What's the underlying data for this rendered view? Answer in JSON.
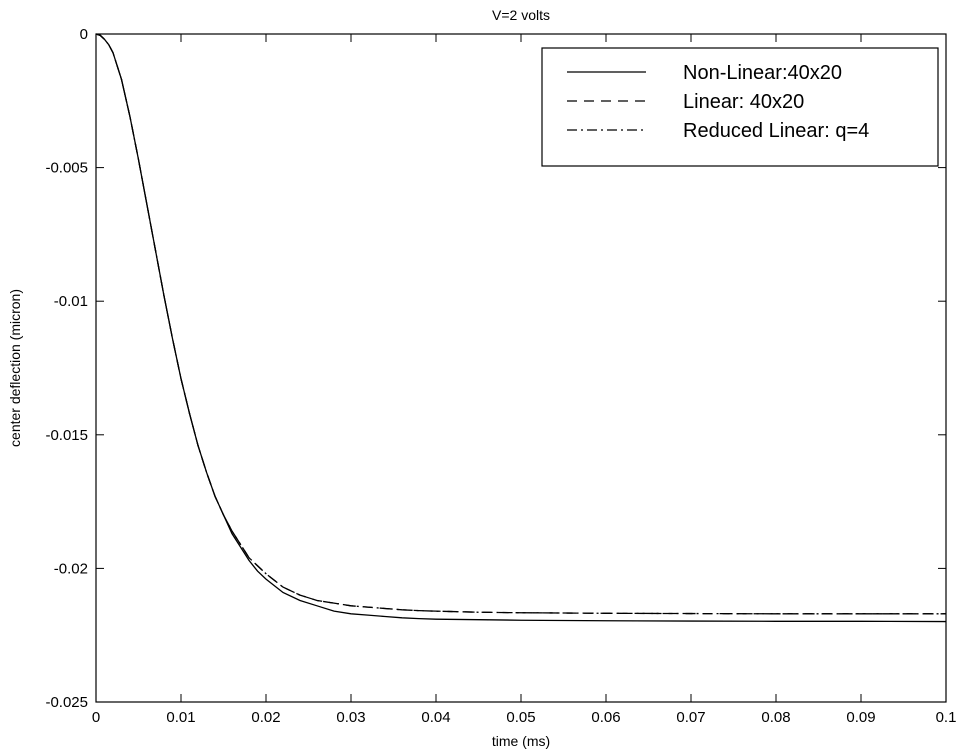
{
  "chart_data": {
    "type": "line",
    "title": "V=2 volts",
    "xlabel": "time (ms)",
    "ylabel": "center deflection (micron)",
    "xlim": [
      0,
      0.1
    ],
    "ylim": [
      -0.025,
      0
    ],
    "xticks": [
      0,
      0.01,
      0.02,
      0.03,
      0.04,
      0.05,
      0.06,
      0.07,
      0.08,
      0.09,
      0.1
    ],
    "xtick_labels": [
      "0",
      "0.01",
      "0.02",
      "0.03",
      "0.04",
      "0.05",
      "0.06",
      "0.07",
      "0.08",
      "0.09",
      "0.1"
    ],
    "yticks": [
      0,
      -0.005,
      -0.01,
      -0.015,
      -0.02,
      -0.025
    ],
    "ytick_labels": [
      "0",
      "-0.005",
      "-0.01",
      "-0.015",
      "-0.02",
      "-0.025"
    ],
    "grid": false,
    "legend_position": "top-right",
    "x": [
      0,
      0.0005,
      0.001,
      0.0015,
      0.002,
      0.003,
      0.004,
      0.005,
      0.006,
      0.007,
      0.008,
      0.009,
      0.01,
      0.011,
      0.012,
      0.013,
      0.014,
      0.015,
      0.016,
      0.017,
      0.018,
      0.019,
      0.02,
      0.022,
      0.024,
      0.026,
      0.028,
      0.03,
      0.032,
      0.034,
      0.036,
      0.038,
      0.04,
      0.045,
      0.05,
      0.055,
      0.06,
      0.07,
      0.08,
      0.09,
      0.1
    ],
    "series": [
      {
        "name": "Non-Linear:40x20",
        "style": "solid",
        "color": "#000000",
        "values": [
          0,
          -5e-05,
          -0.0002,
          -0.0004,
          -0.0007,
          -0.0017,
          -0.0031,
          -0.0047,
          -0.0064,
          -0.0081,
          -0.0098,
          -0.0114,
          -0.0129,
          -0.0142,
          -0.0154,
          -0.0164,
          -0.0173,
          -0.018,
          -0.0187,
          -0.0192,
          -0.0197,
          -0.0201,
          -0.0204,
          -0.0209,
          -0.0212,
          -0.0214,
          -0.0216,
          -0.0217,
          -0.02175,
          -0.0218,
          -0.02185,
          -0.02188,
          -0.0219,
          -0.02192,
          -0.02194,
          -0.02195,
          -0.02196,
          -0.02197,
          -0.02198,
          -0.02198,
          -0.02199
        ]
      },
      {
        "name": "Linear: 40x20",
        "style": "dashed",
        "color": "#000000",
        "values": [
          0,
          -5e-05,
          -0.0002,
          -0.0004,
          -0.0007,
          -0.0017,
          -0.0031,
          -0.0047,
          -0.0064,
          -0.0081,
          -0.0098,
          -0.0114,
          -0.0129,
          -0.0142,
          -0.0154,
          -0.0164,
          -0.0173,
          -0.018,
          -0.0186,
          -0.0191,
          -0.0196,
          -0.0199,
          -0.0202,
          -0.0207,
          -0.021,
          -0.0212,
          -0.0213,
          -0.0214,
          -0.02145,
          -0.0215,
          -0.02155,
          -0.02158,
          -0.0216,
          -0.02164,
          -0.02166,
          -0.02167,
          -0.02168,
          -0.02169,
          -0.0217,
          -0.0217,
          -0.0217
        ]
      },
      {
        "name": "Reduced Linear: q=4",
        "style": "dashdot",
        "color": "#000000",
        "values": [
          0,
          -5e-05,
          -0.0002,
          -0.0004,
          -0.0007,
          -0.0017,
          -0.0031,
          -0.0047,
          -0.0064,
          -0.0081,
          -0.0098,
          -0.0114,
          -0.0129,
          -0.0142,
          -0.0154,
          -0.0164,
          -0.0173,
          -0.018,
          -0.0186,
          -0.0191,
          -0.0196,
          -0.0199,
          -0.0202,
          -0.0207,
          -0.021,
          -0.0212,
          -0.0213,
          -0.0214,
          -0.02145,
          -0.0215,
          -0.02155,
          -0.02158,
          -0.0216,
          -0.02164,
          -0.02166,
          -0.02167,
          -0.02168,
          -0.02169,
          -0.0217,
          -0.0217,
          -0.0217
        ]
      }
    ]
  }
}
